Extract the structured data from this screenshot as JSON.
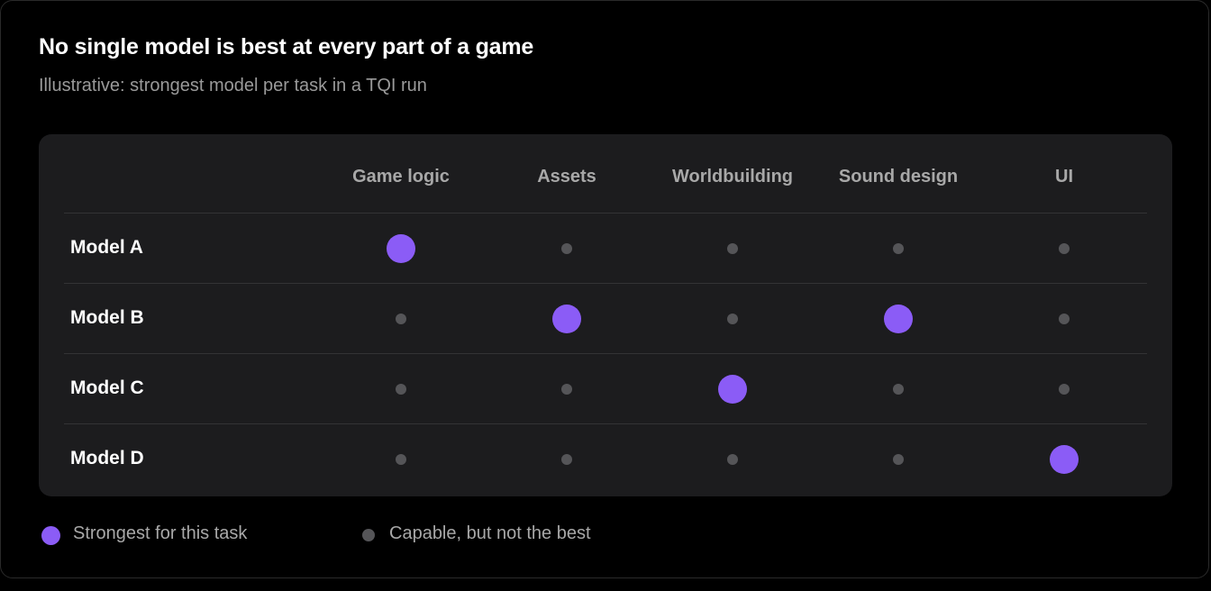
{
  "header": {
    "title": "No single model is best at every part of a game",
    "subtitle": "Illustrative: strongest model per task in a TQI run"
  },
  "colors": {
    "best": "#8b5cf6",
    "capable": "#555558",
    "panel": "#1c1c1e",
    "background": "#000000"
  },
  "chart_data": {
    "type": "table",
    "title": "No single model is best at every part of a game",
    "subtitle": "Illustrative: strongest model per task in a TQI run",
    "columns": [
      "Game logic",
      "Assets",
      "Worldbuilding",
      "Sound design",
      "UI"
    ],
    "rows": [
      {
        "label": "Model A",
        "cells": [
          "best",
          "capable",
          "capable",
          "capable",
          "capable"
        ]
      },
      {
        "label": "Model B",
        "cells": [
          "capable",
          "best",
          "capable",
          "best",
          "capable"
        ]
      },
      {
        "label": "Model C",
        "cells": [
          "capable",
          "capable",
          "best",
          "capable",
          "capable"
        ]
      },
      {
        "label": "Model D",
        "cells": [
          "capable",
          "capable",
          "capable",
          "capable",
          "best"
        ]
      }
    ],
    "legend": [
      {
        "key": "best",
        "label": "Strongest for this task"
      },
      {
        "key": "capable",
        "label": "Capable, but not the best"
      }
    ]
  }
}
